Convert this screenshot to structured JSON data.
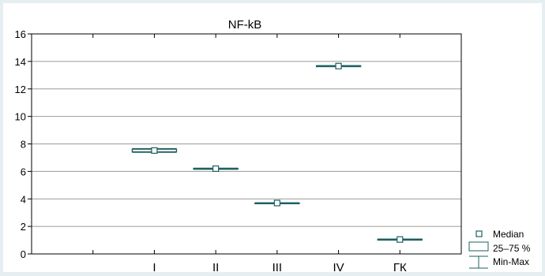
{
  "chart_data": {
    "type": "box",
    "title": "NF-kB",
    "xlabel": "",
    "ylabel": "",
    "ylim": [
      0,
      16
    ],
    "yticks": [
      0,
      2,
      4,
      6,
      8,
      10,
      12,
      14,
      16
    ],
    "grid": "horizontal",
    "legend_position": "bottom-right",
    "categories": [
      "I",
      "II",
      "III",
      "IV",
      "ГК"
    ],
    "boxes": [
      {
        "category": "I",
        "min": 7.38,
        "q1": 7.42,
        "median": 7.52,
        "q3": 7.62,
        "max": 7.66
      },
      {
        "category": "II",
        "min": 6.16,
        "q1": 6.18,
        "median": 6.2,
        "q3": 6.22,
        "max": 6.24
      },
      {
        "category": "III",
        "min": 3.68,
        "q1": 3.7,
        "median": 3.7,
        "q3": 3.71,
        "max": 3.72
      },
      {
        "category": "IV",
        "min": 13.62,
        "q1": 13.64,
        "median": 13.66,
        "q3": 13.68,
        "max": 13.7
      },
      {
        "category": "ГК",
        "min": 1.0,
        "q1": 1.02,
        "median": 1.05,
        "q3": 1.07,
        "max": 1.08
      }
    ],
    "legend": [
      {
        "label": "Median",
        "symbol": "square"
      },
      {
        "label": "25–75 %",
        "symbol": "box"
      },
      {
        "label": "Min-Max",
        "symbol": "whisker"
      }
    ],
    "colors": {
      "background": "#e6eef1",
      "plot_area": "#ffffff",
      "series": "#1f5f5f",
      "grid": "#9a9a9a",
      "axis": "#000000"
    }
  }
}
